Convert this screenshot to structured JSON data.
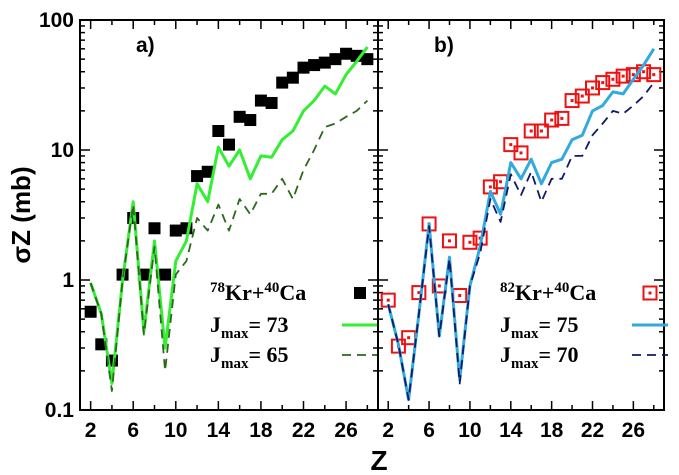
{
  "chart_data": [
    {
      "type": "line",
      "panel_label": "a)",
      "xlabel": "Z",
      "ylabel": "σZ (mb)",
      "xlim": [
        1,
        29
      ],
      "ylim": [
        0.1,
        100
      ],
      "yscale": "log",
      "xticks": [
        2,
        6,
        10,
        14,
        18,
        22,
        26
      ],
      "yticks": [
        0.1,
        1,
        10,
        100
      ],
      "ytick_labels": [
        "0.1",
        "1",
        "10",
        "100"
      ],
      "grid": false,
      "legend_position": "bottom-right",
      "series": [
        {
          "name": "78Kr+40Ca",
          "legend": {
            "sup1": "78",
            "base1": "Kr+",
            "sup2": "40",
            "base2": "Ca"
          },
          "kind": "scatter",
          "marker": "filled-square",
          "color": "#000000",
          "x": [
            2,
            3,
            4,
            5,
            6,
            7,
            8,
            9,
            10,
            11,
            12,
            13,
            14,
            15,
            16,
            17,
            18,
            19,
            20,
            21,
            22,
            23,
            24,
            25,
            26,
            27,
            28
          ],
          "y": [
            0.57,
            0.32,
            0.24,
            1.1,
            3.0,
            1.1,
            2.5,
            1.1,
            2.4,
            2.5,
            6.3,
            6.8,
            14.0,
            11.0,
            18.0,
            17.0,
            24.0,
            23.0,
            33.0,
            36.0,
            43.0,
            45.0,
            47.0,
            50.0,
            55.0,
            53.0,
            50.0
          ]
        },
        {
          "name": "Jmax= 73",
          "legend": {
            "base": "J",
            "sub": "max",
            "rest": "= 73"
          },
          "kind": "line",
          "style": "solid",
          "color": "#33ee33",
          "x": [
            2,
            3,
            4,
            5,
            6,
            7,
            8,
            9,
            10,
            11,
            12,
            13,
            14,
            15,
            16,
            17,
            18,
            19,
            20,
            21,
            22,
            23,
            24,
            25,
            26,
            27,
            28
          ],
          "y": [
            0.95,
            0.55,
            0.16,
            1.0,
            4.0,
            0.4,
            2.0,
            0.3,
            1.4,
            2.0,
            5.5,
            4.0,
            10.5,
            7.5,
            10.0,
            6.0,
            9.0,
            8.8,
            12.0,
            14.0,
            20.0,
            24.0,
            31.0,
            27.0,
            38.0,
            48.0,
            62.0
          ]
        },
        {
          "name": "Jmax= 65",
          "legend": {
            "base": "J",
            "sub": "max",
            "rest": "= 65"
          },
          "kind": "line",
          "style": "dashed",
          "color": "#2a6a1a",
          "x": [
            2,
            3,
            4,
            5,
            6,
            7,
            8,
            9,
            10,
            11,
            12,
            13,
            14,
            15,
            16,
            17,
            18,
            19,
            20,
            21,
            22,
            23,
            24,
            25,
            26,
            27,
            28
          ],
          "y": [
            0.95,
            0.55,
            0.14,
            1.0,
            3.8,
            0.38,
            1.8,
            0.2,
            1.1,
            1.4,
            3.0,
            2.4,
            3.8,
            2.4,
            4.2,
            3.2,
            4.6,
            4.6,
            6.0,
            4.2,
            7.0,
            10.0,
            15.0,
            16.0,
            18.0,
            20.0,
            24.0
          ]
        }
      ]
    },
    {
      "type": "line",
      "panel_label": "b)",
      "xlabel": "Z",
      "xlim": [
        1,
        29
      ],
      "ylim": [
        0.1,
        100
      ],
      "yscale": "log",
      "xticks": [
        2,
        6,
        10,
        14,
        18,
        22,
        26
      ],
      "grid": false,
      "legend_position": "bottom-right",
      "series": [
        {
          "name": "82Kr+40Ca",
          "legend": {
            "sup1": "82",
            "base1": "Kr+",
            "sup2": "40",
            "base2": "Ca"
          },
          "kind": "scatter",
          "marker": "open-square-dot",
          "color": "#ee1111",
          "x": [
            2,
            3,
            4,
            5,
            6,
            7,
            8,
            9,
            10,
            11,
            12,
            13,
            14,
            15,
            16,
            17,
            18,
            19,
            20,
            21,
            22,
            23,
            24,
            25,
            26,
            27,
            28
          ],
          "y": [
            0.7,
            0.31,
            0.36,
            0.8,
            2.7,
            0.9,
            2.0,
            0.76,
            1.95,
            2.1,
            5.2,
            5.7,
            11.0,
            9.5,
            14.0,
            14.0,
            17.0,
            17.5,
            24.0,
            26.0,
            30.0,
            33.0,
            35.0,
            37.0,
            38.0,
            40.0,
            38.0
          ]
        },
        {
          "name": "Jmax= 75",
          "legend": {
            "base": "J",
            "sub": "max",
            "rest": "= 75"
          },
          "kind": "line",
          "style": "solid",
          "color": "#33aadd",
          "x": [
            2,
            3,
            4,
            5,
            6,
            7,
            8,
            9,
            10,
            11,
            12,
            13,
            14,
            15,
            16,
            17,
            18,
            19,
            20,
            21,
            22,
            23,
            24,
            25,
            26,
            27,
            28
          ],
          "y": [
            0.65,
            0.32,
            0.12,
            0.55,
            2.7,
            0.37,
            1.5,
            0.17,
            0.9,
            1.8,
            4.8,
            3.2,
            8.0,
            6.0,
            8.5,
            5.5,
            8.0,
            8.5,
            12.0,
            13.0,
            20.0,
            22.0,
            28.0,
            27.0,
            35.0,
            45.0,
            60.0
          ]
        },
        {
          "name": "Jmax= 70",
          "legend": {
            "base": "J",
            "sub": "max",
            "rest": "= 70"
          },
          "kind": "line",
          "style": "dashed",
          "color": "#101a66",
          "x": [
            2,
            3,
            4,
            5,
            6,
            7,
            8,
            9,
            10,
            11,
            12,
            13,
            14,
            15,
            16,
            17,
            18,
            19,
            20,
            21,
            22,
            23,
            24,
            25,
            26,
            27,
            28
          ],
          "y": [
            0.65,
            0.32,
            0.12,
            0.55,
            2.6,
            0.37,
            1.45,
            0.16,
            0.9,
            1.6,
            4.2,
            2.8,
            6.5,
            4.5,
            6.8,
            4.0,
            6.0,
            6.0,
            9.0,
            9.0,
            13.0,
            16.0,
            20.0,
            19.0,
            22.0,
            26.0,
            33.0
          ]
        }
      ]
    }
  ]
}
